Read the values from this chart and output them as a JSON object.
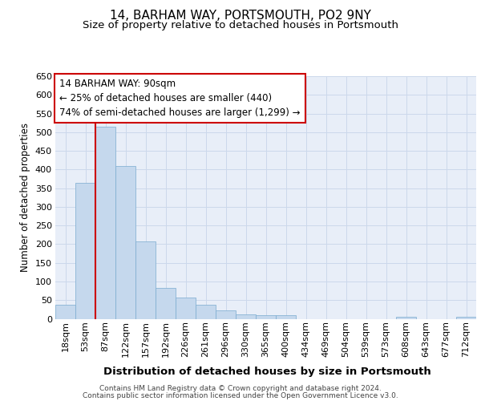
{
  "title1": "14, BARHAM WAY, PORTSMOUTH, PO2 9NY",
  "title2": "Size of property relative to detached houses in Portsmouth",
  "xlabel": "Distribution of detached houses by size in Portsmouth",
  "ylabel": "Number of detached properties",
  "categories": [
    "18sqm",
    "53sqm",
    "87sqm",
    "122sqm",
    "157sqm",
    "192sqm",
    "226sqm",
    "261sqm",
    "296sqm",
    "330sqm",
    "365sqm",
    "400sqm",
    "434sqm",
    "469sqm",
    "504sqm",
    "539sqm",
    "573sqm",
    "608sqm",
    "643sqm",
    "677sqm",
    "712sqm"
  ],
  "values": [
    38,
    365,
    515,
    410,
    207,
    83,
    57,
    37,
    23,
    12,
    10,
    10,
    0,
    0,
    0,
    0,
    0,
    5,
    0,
    0,
    5
  ],
  "bar_color": "#c5d8ed",
  "bar_edge_color": "#7aabcf",
  "vline_x_index": 2,
  "vline_color": "#cc0000",
  "annotation_text": "14 BARHAM WAY: 90sqm\n← 25% of detached houses are smaller (440)\n74% of semi-detached houses are larger (1,299) →",
  "annotation_box_facecolor": "#ffffff",
  "annotation_box_edgecolor": "#cc0000",
  "ylim_max": 650,
  "yticks": [
    0,
    50,
    100,
    150,
    200,
    250,
    300,
    350,
    400,
    450,
    500,
    550,
    600,
    650
  ],
  "grid_color": "#ccd8eb",
  "plot_bg_color": "#e8eef8",
  "footer_line1": "Contains HM Land Registry data © Crown copyright and database right 2024.",
  "footer_line2": "Contains public sector information licensed under the Open Government Licence v3.0.",
  "title1_fontsize": 11,
  "title2_fontsize": 9.5,
  "xlabel_fontsize": 9.5,
  "ylabel_fontsize": 8.5,
  "tick_fontsize": 8,
  "ann_fontsize": 8.5,
  "footer_fontsize": 6.5
}
